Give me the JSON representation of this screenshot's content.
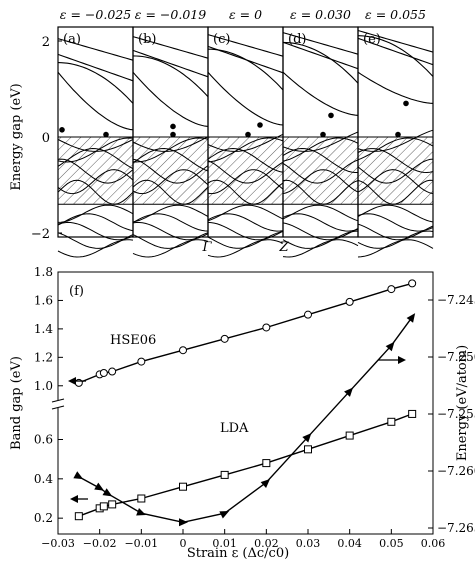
{
  "chart_data": [
    {
      "type": "line",
      "subtype": "band-structure",
      "ylabel": "Energy gap (eV)",
      "xticks": [
        "Γ",
        "Z"
      ],
      "ylim": [
        -2.5,
        2.5
      ],
      "yticks": [
        -2,
        0,
        2
      ],
      "hatched_region": [
        -1.4,
        0
      ],
      "panels": [
        {
          "label": "(a)",
          "strain_label": "ε = −0.025",
          "cb_min": 0.15,
          "vb_max": 0.05
        },
        {
          "label": "(b)",
          "strain_label": "ε = −0.019",
          "cb_min": 0.22,
          "vb_max": 0.05
        },
        {
          "label": "(c)",
          "strain_label": "ε = 0",
          "cb_min": 0.25,
          "vb_max": 0.05
        },
        {
          "label": "(d)",
          "strain_label": "ε = 0.030",
          "cb_min": 0.45,
          "vb_max": 0.05
        },
        {
          "label": "(e)",
          "strain_label": "ε = 0.055",
          "cb_min": 0.7,
          "vb_max": 0.05
        }
      ]
    },
    {
      "type": "line",
      "panel_label": "(f)",
      "xlabel": "Strain ε   (Δc/c0)",
      "ylabel": "Band gap (eV)",
      "y2label": "Energy (eV/atom)",
      "xlim": [
        -0.03,
        0.06
      ],
      "xticks": [
        "−0.03",
        "−0.02",
        "−0.01",
        "0",
        "0.01",
        "0.02",
        "0.03",
        "0.04",
        "0.05",
        "0.06"
      ],
      "yticks_lower": [
        "0.2",
        "0.4",
        "0.6"
      ],
      "yticks_upper": [
        "1.0",
        "1.2",
        "1.4",
        "1.6",
        "1.8"
      ],
      "y2ticks": [
        "−7.245",
        "−7.250",
        "−7.255",
        "−7.260",
        "−7.265"
      ],
      "series": [
        {
          "name": "HSE06",
          "axis": "left",
          "marker": "circle",
          "x": [
            -0.025,
            -0.02,
            -0.019,
            -0.017,
            -0.01,
            0,
            0.01,
            0.02,
            0.03,
            0.04,
            0.05,
            0.055
          ],
          "y": [
            1.02,
            1.08,
            1.09,
            1.1,
            1.17,
            1.25,
            1.33,
            1.41,
            1.5,
            1.59,
            1.68,
            1.72
          ]
        },
        {
          "name": "LDA",
          "axis": "left",
          "marker": "square",
          "x": [
            -0.025,
            -0.02,
            -0.019,
            -0.017,
            -0.01,
            0,
            0.01,
            0.02,
            0.03,
            0.04,
            0.05,
            0.055
          ],
          "y": [
            0.21,
            0.25,
            0.26,
            0.27,
            0.3,
            0.36,
            0.42,
            0.48,
            0.55,
            0.62,
            0.69,
            0.73
          ]
        },
        {
          "axis": "right",
          "marker": "triangle",
          "x": [
            -0.025,
            -0.02,
            -0.018,
            -0.01,
            0,
            0.01,
            0.02,
            0.03,
            0.04,
            0.05,
            0.055
          ],
          "y": [
            -7.2605,
            -7.2615,
            -7.262,
            -7.2637,
            -7.2645,
            -7.2637,
            -7.261,
            -7.257,
            -7.253,
            -7.249,
            -7.2465
          ]
        }
      ]
    }
  ]
}
